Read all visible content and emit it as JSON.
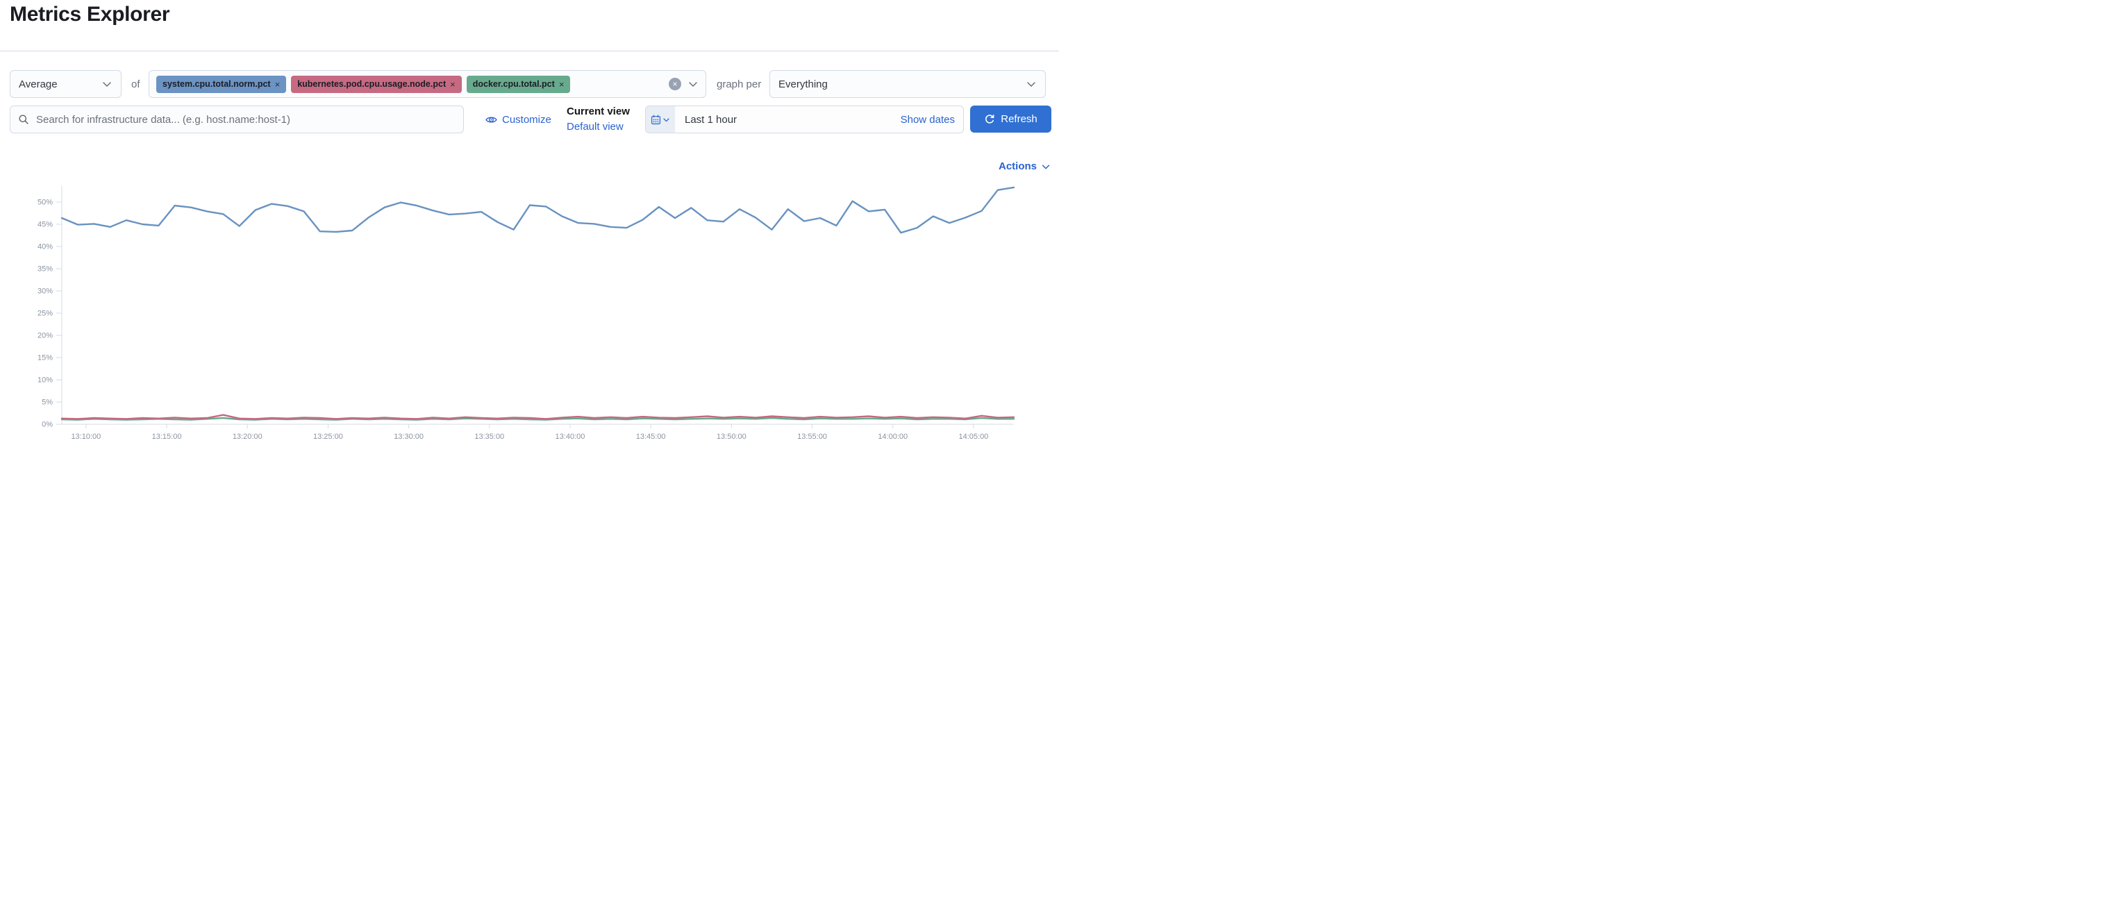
{
  "page": {
    "title": "Metrics Explorer"
  },
  "colors": {
    "link": "#2b62cf",
    "primary_button": "#3070d3",
    "metric_blue": "#6b93c3",
    "metric_pink": "#c66a82",
    "metric_green": "#68aa8d"
  },
  "toolbar": {
    "aggregation": {
      "value": "Average"
    },
    "of_label": "of",
    "metrics": [
      {
        "label": "system.cpu.total.norm.pct",
        "color": "#6b93c3"
      },
      {
        "label": "kubernetes.pod.cpu.usage.node.pct",
        "color": "#c66a82"
      },
      {
        "label": "docker.cpu.total.pct",
        "color": "#68aa8d"
      }
    ],
    "remove_glyph": "×",
    "clear_glyph": "×",
    "graph_per_label": "graph per",
    "group_by": {
      "value": "Everything"
    }
  },
  "search": {
    "placeholder": "Search for infrastructure data... (e.g. host.name:host-1)"
  },
  "view_controls": {
    "customize_label": "Customize",
    "current_view_label": "Current view",
    "default_view_label": "Default view"
  },
  "time_picker": {
    "range_label": "Last 1 hour",
    "show_dates_label": "Show dates",
    "refresh_label": "Refresh"
  },
  "actions_label": "Actions",
  "chart_data": {
    "type": "line",
    "title": "",
    "xlabel": "",
    "ylabel": "",
    "legend": false,
    "grid": false,
    "ylim": [
      0,
      54
    ],
    "y_unit": "%",
    "y_tick_values": [
      0,
      5,
      10,
      15,
      20,
      25,
      30,
      35,
      40,
      45,
      50
    ],
    "y_tick_labels": [
      "0%",
      "5%",
      "10%",
      "15%",
      "20%",
      "25%",
      "30%",
      "35%",
      "40%",
      "45%",
      "50%"
    ],
    "x_ticks": [
      "13:10:00",
      "13:15:00",
      "13:20:00",
      "13:25:00",
      "13:30:00",
      "13:35:00",
      "13:40:00",
      "13:45:00",
      "13:50:00",
      "13:55:00",
      "14:00:00",
      "14:05:00"
    ],
    "x_first_tick_min": 1.5,
    "x_tick_interval_min": 5,
    "x_span_min": 59,
    "series": [
      {
        "name": "system.cpu.total.norm.pct (avg)",
        "color": "#6892c0",
        "values": [
          46.4,
          44.9,
          45.1,
          44.4,
          45.9,
          45.0,
          44.7,
          49.2,
          48.8,
          47.9,
          47.3,
          44.6,
          48.2,
          49.6,
          49.1,
          47.9,
          43.4,
          43.3,
          43.6,
          46.5,
          48.8,
          49.9,
          49.2,
          48.1,
          47.2,
          47.4,
          47.8,
          45.5,
          43.8,
          49.3,
          49.0,
          46.8,
          45.3,
          45.1,
          44.4,
          44.2,
          46.0,
          48.9,
          46.4,
          48.7,
          45.9,
          45.6,
          48.4,
          46.5,
          43.8,
          48.4,
          45.7,
          46.4,
          44.7,
          50.2,
          47.9,
          48.3,
          43.1,
          44.2,
          46.8,
          45.3,
          46.5,
          48.0,
          52.7,
          53.3
        ]
      },
      {
        "name": "kubernetes.pod.cpu.usage.node.pct (avg)",
        "color": "#c5677f",
        "values": [
          1.3,
          1.2,
          1.4,
          1.3,
          1.2,
          1.4,
          1.3,
          1.5,
          1.3,
          1.4,
          2.1,
          1.3,
          1.2,
          1.4,
          1.3,
          1.5,
          1.4,
          1.2,
          1.4,
          1.3,
          1.5,
          1.3,
          1.2,
          1.5,
          1.3,
          1.6,
          1.4,
          1.3,
          1.5,
          1.4,
          1.2,
          1.5,
          1.7,
          1.4,
          1.6,
          1.4,
          1.7,
          1.5,
          1.4,
          1.6,
          1.8,
          1.5,
          1.7,
          1.5,
          1.8,
          1.6,
          1.4,
          1.7,
          1.5,
          1.6,
          1.8,
          1.5,
          1.7,
          1.4,
          1.6,
          1.5,
          1.3,
          1.9,
          1.5,
          1.6
        ]
      },
      {
        "name": "docker.cpu.total.pct (avg)",
        "color": "#68aa8d",
        "values": [
          1.1,
          1.0,
          1.2,
          1.1,
          1.0,
          1.1,
          1.2,
          1.1,
          1.0,
          1.2,
          1.4,
          1.1,
          1.0,
          1.2,
          1.1,
          1.2,
          1.1,
          1.0,
          1.2,
          1.1,
          1.2,
          1.1,
          1.0,
          1.2,
          1.1,
          1.3,
          1.2,
          1.1,
          1.2,
          1.1,
          1.0,
          1.2,
          1.3,
          1.1,
          1.2,
          1.1,
          1.3,
          1.2,
          1.1,
          1.2,
          1.3,
          1.2,
          1.3,
          1.2,
          1.4,
          1.2,
          1.1,
          1.3,
          1.2,
          1.2,
          1.3,
          1.2,
          1.3,
          1.1,
          1.2,
          1.2,
          1.1,
          1.4,
          1.2,
          1.2
        ]
      }
    ]
  }
}
